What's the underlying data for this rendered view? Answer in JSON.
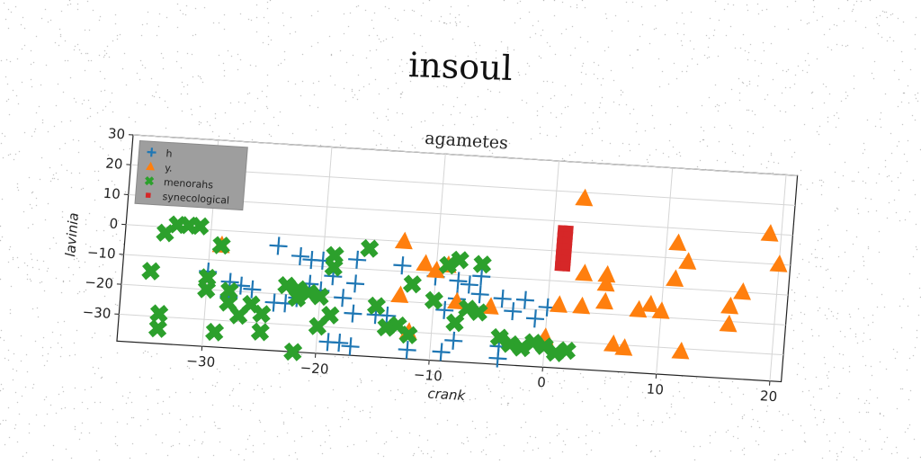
{
  "figure": {
    "suptitle": "insoul"
  },
  "chart_data": {
    "type": "scatter",
    "title": "agametes",
    "xlabel": "crank",
    "ylabel": "lavinia",
    "xlim": [
      -37.5,
      21
    ],
    "ylim": [
      -39,
      30
    ],
    "xticks": [
      -30,
      -20,
      -10,
      0,
      10,
      20
    ],
    "yticks": [
      -30,
      -20,
      -10,
      0,
      10,
      20,
      30
    ],
    "grid": true,
    "legend_position": "top-left",
    "series": [
      {
        "name": "h",
        "marker": "plus",
        "color": "#1f77b4",
        "points": [
          [
            -30,
            -14
          ],
          [
            -28,
            -17
          ],
          [
            -27,
            -18
          ],
          [
            -26,
            -19
          ],
          [
            -28,
            -22
          ],
          [
            -24,
            -4
          ],
          [
            -22,
            -7
          ],
          [
            -21,
            -8
          ],
          [
            -20,
            -8
          ],
          [
            -19,
            -13
          ],
          [
            -21,
            -16
          ],
          [
            -20,
            -18
          ],
          [
            -22,
            -21
          ],
          [
            -23,
            -23
          ],
          [
            -24,
            -23
          ],
          [
            -17,
            -7
          ],
          [
            -17,
            -15
          ],
          [
            -18,
            -20
          ],
          [
            -17,
            -25
          ],
          [
            -15,
            -25
          ],
          [
            -14,
            -25
          ],
          [
            -13,
            -8
          ],
          [
            -10,
            -11
          ],
          [
            -8,
            -12
          ],
          [
            -7,
            -13
          ],
          [
            -6,
            -10
          ],
          [
            -8,
            -18
          ],
          [
            -6,
            -16
          ],
          [
            -4,
            -17
          ],
          [
            -2,
            -17
          ],
          [
            -3,
            -21
          ],
          [
            -1,
            -23
          ],
          [
            0,
            -19
          ],
          [
            -9,
            -22
          ],
          [
            -8,
            -32
          ],
          [
            -9,
            -36
          ],
          [
            -4,
            -37
          ],
          [
            -4,
            -33
          ],
          [
            -12,
            -36
          ],
          [
            -18,
            -35
          ],
          [
            -19,
            -35
          ],
          [
            -17,
            -36
          ]
        ]
      },
      {
        "name": "y.",
        "marker": "triangle",
        "color": "#ff7f0e",
        "points": [
          [
            2.5,
            18
          ],
          [
            -29,
            -5
          ],
          [
            -13,
            0
          ],
          [
            -11,
            -7
          ],
          [
            -10,
            -9
          ],
          [
            -9,
            -7
          ],
          [
            -13,
            -18
          ],
          [
            -8,
            -19
          ],
          [
            -5,
            -20
          ],
          [
            -12,
            -30
          ],
          [
            0,
            -29
          ],
          [
            1,
            -18
          ],
          [
            3,
            -18
          ],
          [
            3,
            -7
          ],
          [
            5,
            -7
          ],
          [
            5,
            -10
          ],
          [
            5,
            -16
          ],
          [
            6,
            -30
          ],
          [
            7,
            -31
          ],
          [
            8,
            -18
          ],
          [
            9,
            -16
          ],
          [
            10,
            -18
          ],
          [
            11,
            5
          ],
          [
            12,
            -1
          ],
          [
            11,
            -7
          ],
          [
            12,
            -31
          ],
          [
            16,
            -15
          ],
          [
            16,
            -21
          ],
          [
            17,
            -10
          ],
          [
            19,
            10
          ],
          [
            20,
            0
          ]
        ]
      },
      {
        "name": "menorahs",
        "marker": "x",
        "color": "#2ca02c",
        "points": [
          [
            -34,
            -2
          ],
          [
            -33,
            1
          ],
          [
            -32,
            1
          ],
          [
            -31,
            1
          ],
          [
            -29,
            -5
          ],
          [
            -30,
            -16
          ],
          [
            -30,
            -20
          ],
          [
            -28,
            -20
          ],
          [
            -28,
            -24
          ],
          [
            -26,
            -24
          ],
          [
            -25,
            -27
          ],
          [
            -27,
            -28
          ],
          [
            -35,
            -15
          ],
          [
            -34,
            -29
          ],
          [
            -34,
            -34
          ],
          [
            -29,
            -34
          ],
          [
            -25,
            -33
          ],
          [
            -23,
            -17
          ],
          [
            -22,
            -18
          ],
          [
            -21,
            -19
          ],
          [
            -20,
            -20
          ],
          [
            -22,
            -21
          ],
          [
            -19,
            -26
          ],
          [
            -20,
            -30
          ],
          [
            -19,
            -10
          ],
          [
            -19,
            -6
          ],
          [
            -16,
            -3
          ],
          [
            -15,
            -22
          ],
          [
            -14,
            -29
          ],
          [
            -13,
            -28
          ],
          [
            -12,
            -31
          ],
          [
            -10,
            -19
          ],
          [
            -9,
            -7
          ],
          [
            -8,
            -5
          ],
          [
            -6,
            -6
          ],
          [
            -6,
            -22
          ],
          [
            -7,
            -21
          ],
          [
            -8,
            -26
          ],
          [
            -12,
            -14
          ],
          [
            -4,
            -30
          ],
          [
            -3,
            -32
          ],
          [
            -2,
            -33
          ],
          [
            -1,
            -31
          ],
          [
            0,
            -32
          ],
          [
            1,
            -34
          ],
          [
            2,
            -33
          ],
          [
            -7,
            -40
          ],
          [
            -2,
            -43
          ],
          [
            -1,
            -43
          ],
          [
            -22,
            -39
          ]
        ]
      },
      {
        "name": "synecological",
        "marker": "square",
        "color": "#d62728",
        "points": [
          [
            0.8,
            7
          ],
          [
            1.3,
            7
          ],
          [
            0.8,
            5
          ],
          [
            1.3,
            5
          ],
          [
            0.8,
            3
          ],
          [
            1.3,
            3
          ],
          [
            0.8,
            1
          ],
          [
            1.3,
            1
          ],
          [
            0.8,
            -1
          ],
          [
            1.3,
            -1
          ],
          [
            0.8,
            -3
          ],
          [
            1.3,
            -3
          ],
          [
            0.8,
            -5
          ],
          [
            1.3,
            -5
          ]
        ]
      }
    ]
  }
}
